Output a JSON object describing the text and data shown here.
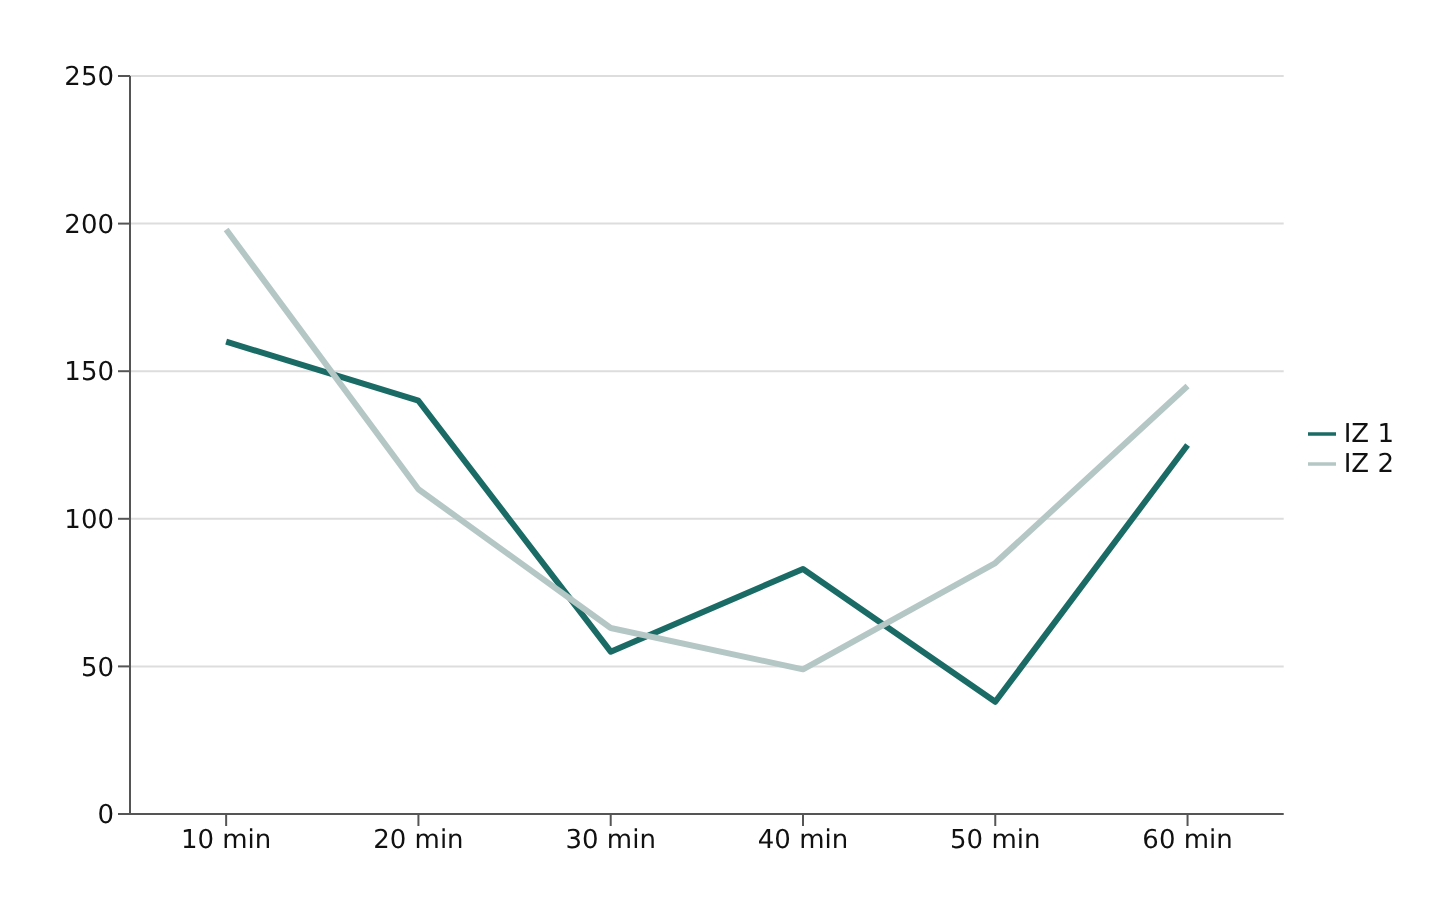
{
  "chart_data": {
    "type": "line",
    "categories": [
      "10 min",
      "20 min",
      "30 min",
      "40 min",
      "50 min",
      "60 min"
    ],
    "series": [
      {
        "name": "IZ 1",
        "color": "#1a6b66",
        "values": [
          160,
          140,
          55,
          83,
          38,
          125
        ]
      },
      {
        "name": "IZ 2",
        "color": "#b5c7c5",
        "values": [
          198,
          110,
          63,
          49,
          85,
          145
        ]
      }
    ],
    "ylim": [
      0,
      250
    ],
    "yticks": [
      0,
      50,
      100,
      150,
      200,
      250
    ],
    "grid": "y",
    "legend": "right",
    "marker": "none",
    "line_style": "solid"
  }
}
